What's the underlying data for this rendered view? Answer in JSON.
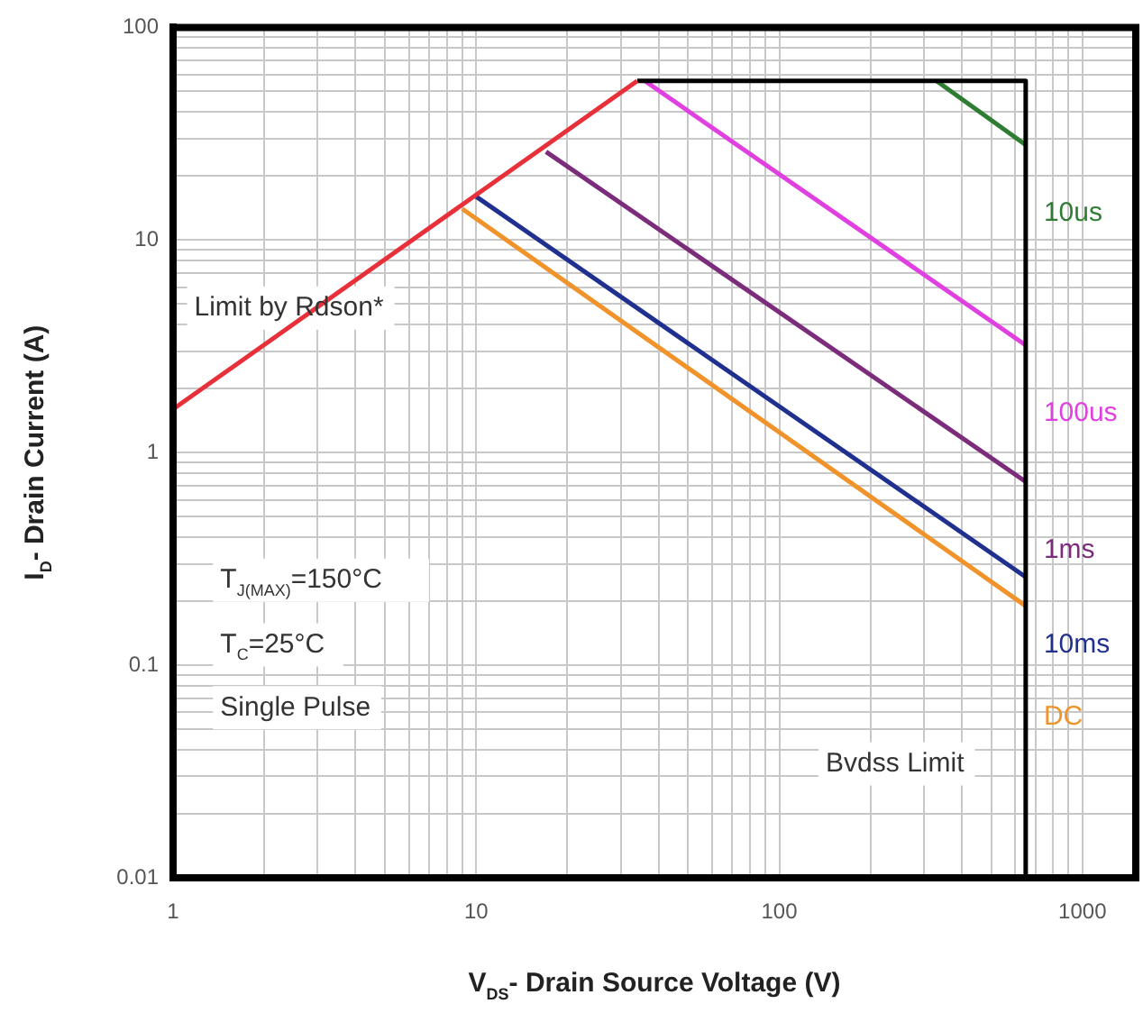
{
  "chart_data": {
    "type": "line",
    "xlabel": "V$_{DS}$- Drain Source Voltage (V)",
    "ylabel": "I$_{D}$- Drain Current (A)",
    "log": "xy",
    "xlim": [
      1,
      1500
    ],
    "ylim": [
      0.01,
      100
    ],
    "xticks": [
      1,
      {
        "value": 2,
        "label": null
      },
      {
        "value": 3,
        "label": null
      },
      {
        "value": 4,
        "label": null
      },
      {
        "value": 5,
        "label": null
      },
      {
        "value": 6,
        "label": null
      },
      {
        "value": 7,
        "label": null
      },
      {
        "value": 8,
        "label": null
      },
      {
        "value": 9,
        "label": null
      },
      10,
      {
        "value": 20,
        "label": null
      },
      {
        "value": 30,
        "label": null
      },
      {
        "value": 40,
        "label": null
      },
      {
        "value": 50,
        "label": null
      },
      {
        "value": 60,
        "label": null
      },
      {
        "value": 70,
        "label": null
      },
      {
        "value": 80,
        "label": null
      },
      {
        "value": 90,
        "label": null
      },
      100,
      {
        "value": 200,
        "label": null
      },
      {
        "value": 300,
        "label": null
      },
      {
        "value": 400,
        "label": null
      },
      {
        "value": 500,
        "label": null
      },
      {
        "value": 600,
        "label": null
      },
      {
        "value": 700,
        "label": null
      },
      {
        "value": 800,
        "label": null
      },
      {
        "value": 900,
        "label": null
      },
      1000
    ],
    "yticks": [
      0.01,
      {
        "value": 0.02,
        "label": null
      },
      {
        "value": 0.03,
        "label": null
      },
      {
        "value": 0.04,
        "label": null
      },
      {
        "value": 0.05,
        "label": null
      },
      {
        "value": 0.06,
        "label": null
      },
      {
        "value": 0.07,
        "label": null
      },
      {
        "value": 0.08,
        "label": null
      },
      {
        "value": 0.09,
        "label": null
      },
      0.1,
      {
        "value": 0.2,
        "label": null
      },
      {
        "value": 0.3,
        "label": null
      },
      {
        "value": 0.4,
        "label": null
      },
      {
        "value": 0.5,
        "label": null
      },
      {
        "value": 0.6,
        "label": null
      },
      {
        "value": 0.7,
        "label": null
      },
      {
        "value": 0.8,
        "label": null
      },
      {
        "value": 0.9,
        "label": null
      },
      1,
      {
        "value": 2,
        "label": null
      },
      {
        "value": 3,
        "label": null
      },
      {
        "value": 4,
        "label": null
      },
      {
        "value": 5,
        "label": null
      },
      {
        "value": 6,
        "label": null
      },
      {
        "value": 7,
        "label": null
      },
      {
        "value": 8,
        "label": null
      },
      {
        "value": 9,
        "label": null
      },
      10,
      {
        "value": 20,
        "label": null
      },
      {
        "value": 30,
        "label": null
      },
      {
        "value": 40,
        "label": null
      },
      {
        "value": 50,
        "label": null
      },
      {
        "value": 60,
        "label": null
      },
      {
        "value": 70,
        "label": null
      },
      {
        "value": 80,
        "label": null
      },
      {
        "value": 90,
        "label": null
      },
      100
    ],
    "grid": true,
    "marker": "none",
    "line_style": "solid",
    "series": [
      {
        "color": "#e8303a",
        "x": [
          1,
          34
        ],
        "values": [
          1.6,
          56
        ]
      },
      {
        "color": "#000000",
        "x": [
          34,
          650,
          650
        ],
        "values": [
          56,
          56,
          0.01
        ]
      },
      {
        "name": "10us",
        "color": "#2e7d32",
        "x": [
          330,
          650
        ],
        "values": [
          56,
          28
        ]
      },
      {
        "name": "100us",
        "color": "#e040e0",
        "x": [
          36,
          650
        ],
        "values": [
          56,
          3.2
        ]
      },
      {
        "name": "1ms",
        "color": "#7b2d7b",
        "x": [
          17,
          650
        ],
        "values": [
          26,
          0.73
        ]
      },
      {
        "name": "10ms",
        "color": "#20308f",
        "x": [
          10,
          650
        ],
        "values": [
          16,
          0.26
        ]
      },
      {
        "name": "DC",
        "color": "#f0932b",
        "x": [
          9,
          650
        ],
        "values": [
          14,
          0.19
        ]
      }
    ],
    "annotations": [
      "Limit by Rdson*",
      "Bvdss Limit",
      "T$_{J(MAX)}$=150°C",
      "T$_{C}$=25°C",
      "Single Pulse"
    ]
  }
}
